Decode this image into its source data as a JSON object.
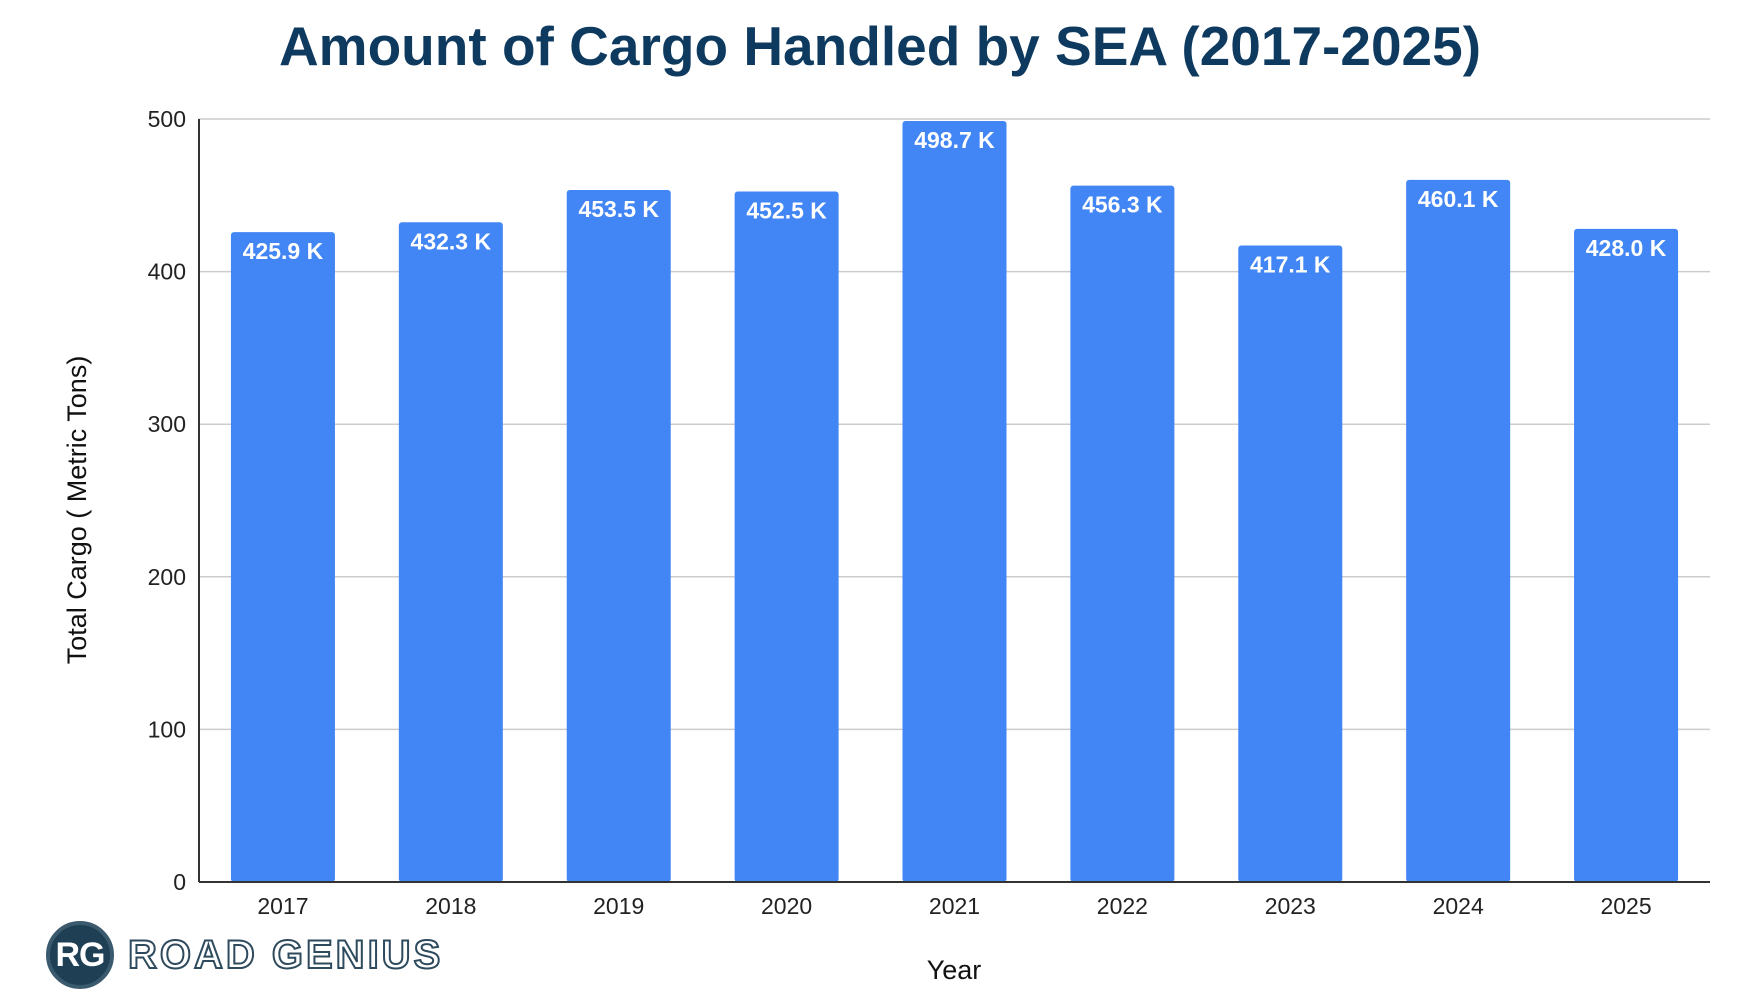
{
  "chart_data": {
    "type": "bar",
    "title": "Amount of Cargo Handled by SEA (2017-2025)",
    "xlabel": "Year",
    "ylabel": "Total Cargo ( Metric Tons)",
    "categories": [
      "2017",
      "2018",
      "2019",
      "2020",
      "2021",
      "2022",
      "2023",
      "2024",
      "2025"
    ],
    "values": [
      425.9,
      432.3,
      453.5,
      452.5,
      498.7,
      456.3,
      417.1,
      460.1,
      428.0
    ],
    "data_labels": [
      "425.9 K",
      "432.3 K",
      "453.5 K",
      "452.5 K",
      "498.7 K",
      "456.3 K",
      "417.1 K",
      "460.1 K",
      "428.0 K"
    ],
    "ylim": [
      0,
      500
    ],
    "yticks": [
      0,
      100,
      200,
      300,
      400,
      500
    ],
    "ytick_labels": [
      "0",
      "100",
      "200",
      "300",
      "400",
      "500"
    ],
    "grid": true,
    "bar_color": "#4285f4"
  },
  "logo": {
    "initials": "RG",
    "text": "ROAD GENIUS"
  }
}
